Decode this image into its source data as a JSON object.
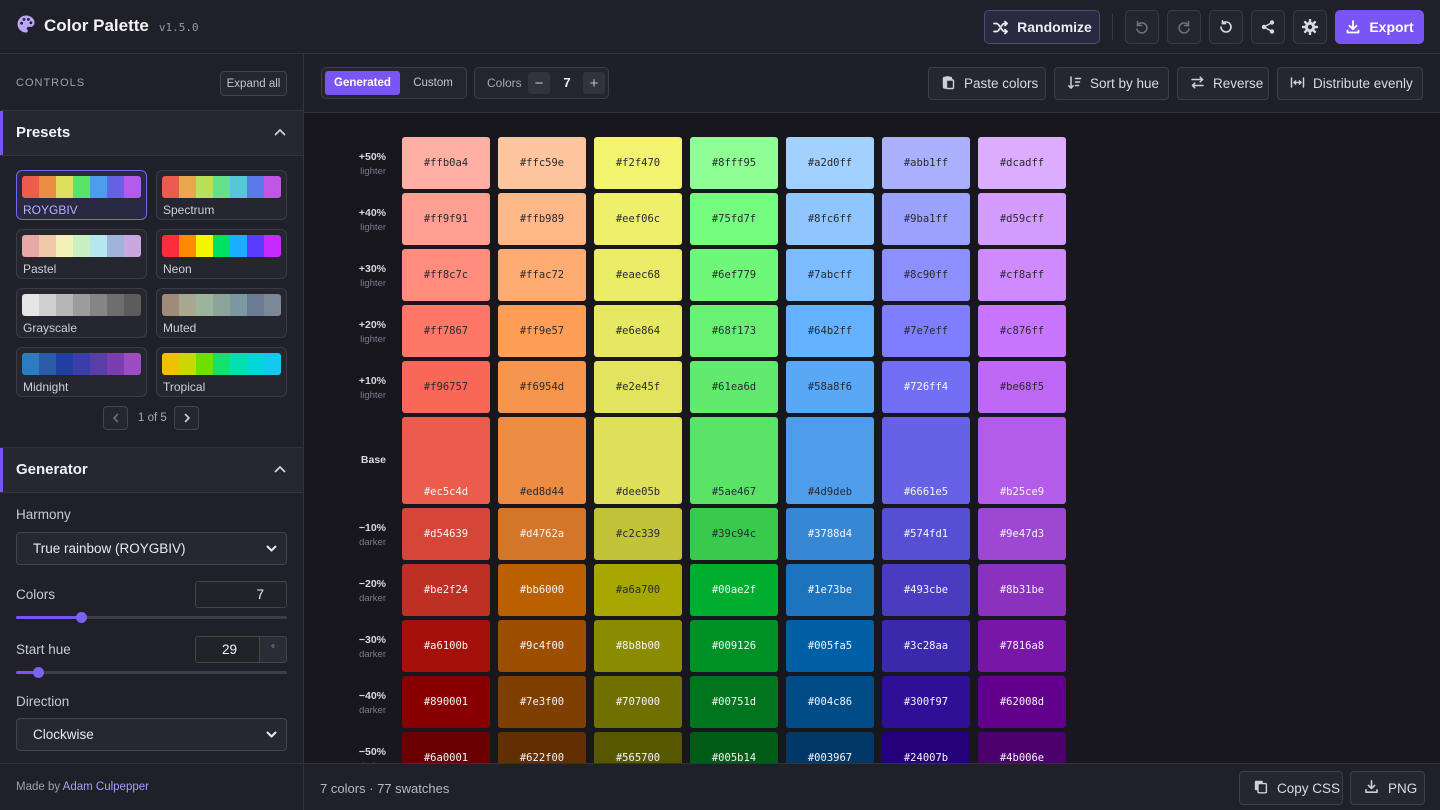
{
  "header": {
    "title": "Color Palette",
    "version": "v1.5.0",
    "randomize_label": "Randomize",
    "export_label": "Export",
    "colors": {
      "accent": "#7a55f5"
    }
  },
  "sidebar": {
    "controls_title": "CONTROLS",
    "expand_all_label": "Expand all",
    "presets": {
      "title": "Presets",
      "items": [
        {
          "name": "ROYGBIV",
          "active": true,
          "colors": [
            "#ec5c4d",
            "#ed8d44",
            "#dee05b",
            "#5ae467",
            "#4d9deb",
            "#6661e5",
            "#b25ce9"
          ]
        },
        {
          "name": "Spectrum",
          "active": false,
          "colors": [
            "#ec5c4d",
            "#eaa64a",
            "#b9e05b",
            "#66e08a",
            "#55c7d8",
            "#5b79e6",
            "#c056e6"
          ]
        },
        {
          "name": "Pastel",
          "active": false,
          "colors": [
            "#e8a8a8",
            "#f2c9a8",
            "#f4f2b8",
            "#c8f0c0",
            "#b6e6ee",
            "#9eb4da",
            "#c8a8de"
          ]
        },
        {
          "name": "Neon",
          "active": false,
          "colors": [
            "#ff2d3a",
            "#ff8a00",
            "#f5f500",
            "#00e060",
            "#1ab0ff",
            "#5b3cff",
            "#c62bff"
          ]
        },
        {
          "name": "Grayscale",
          "active": false,
          "colors": [
            "#e6e6e6",
            "#cfcfcf",
            "#b6b6b6",
            "#9c9c9c",
            "#858585",
            "#6e6e6e",
            "#5c5c5c"
          ]
        },
        {
          "name": "Muted",
          "active": false,
          "colors": [
            "#a08c76",
            "#a8a890",
            "#9cb49c",
            "#8ca49a",
            "#7c98a0",
            "#6a7c94",
            "#7a8898"
          ]
        },
        {
          "name": "Midnight",
          "active": false,
          "colors": [
            "#2c7cc0",
            "#2a5ca8",
            "#1f3fa0",
            "#3b3ea8",
            "#5a3ea8",
            "#7a3eb0",
            "#9c4ec0"
          ]
        },
        {
          "name": "Tropical",
          "active": false,
          "colors": [
            "#f2c000",
            "#c8d800",
            "#6ee000",
            "#14e070",
            "#00e0b0",
            "#00d8d8",
            "#14c8f0"
          ]
        }
      ],
      "page_text": "1 of 5"
    },
    "generator": {
      "title": "Generator",
      "harmony_label": "Harmony",
      "harmony_value": "True rainbow (ROYGBIV)",
      "colors_label": "Colors",
      "colors_value": "7",
      "colors_slider_fraction": 0.24,
      "start_hue_label": "Start hue",
      "start_hue_value": "29",
      "start_hue_unit": "°",
      "start_hue_slider_fraction": 0.08,
      "direction_label": "Direction",
      "direction_value": "Clockwise"
    },
    "footer": {
      "made_by": "Made by",
      "author": "Adam Culpepper"
    }
  },
  "toolbar": {
    "tab_generated": "Generated",
    "tab_custom": "Custom",
    "colors_label": "Colors",
    "colors_value": "7",
    "minus": "−",
    "plus": "+",
    "paste_label": "Paste colors",
    "sort_label": "Sort by hue",
    "reverse_label": "Reverse",
    "distribute_label": "Distribute evenly"
  },
  "palette": {
    "rows": [
      {
        "label": "+50%",
        "sub": "lighter",
        "kind": "tint",
        "swatches": [
          "#ffb0a4",
          "#ffc59e",
          "#f2f470",
          "#8fff95",
          "#a2d0ff",
          "#abb1ff",
          "#dcadff"
        ]
      },
      {
        "label": "+40%",
        "sub": "lighter",
        "kind": "tint",
        "swatches": [
          "#ff9f91",
          "#ffb989",
          "#eef06c",
          "#75fd7f",
          "#8fc6ff",
          "#9ba1ff",
          "#d59cff"
        ]
      },
      {
        "label": "+30%",
        "sub": "lighter",
        "kind": "tint",
        "swatches": [
          "#ff8c7c",
          "#ffac72",
          "#eaec68",
          "#6ef779",
          "#7abcff",
          "#8c90ff",
          "#cf8aff"
        ]
      },
      {
        "label": "+20%",
        "sub": "lighter",
        "kind": "tint",
        "swatches": [
          "#ff7867",
          "#ff9e57",
          "#e6e864",
          "#68f173",
          "#64b2ff",
          "#7e7eff",
          "#c876ff"
        ]
      },
      {
        "label": "+10%",
        "sub": "lighter",
        "kind": "tint",
        "swatches": [
          "#f96757",
          "#f6954d",
          "#e2e45f",
          "#61ea6d",
          "#58a8f6",
          "#726ff4",
          "#be68f5"
        ]
      },
      {
        "label": "Base",
        "sub": "",
        "kind": "base",
        "swatches": [
          "#ec5c4d",
          "#ed8d44",
          "#dee05b",
          "#5ae467",
          "#4d9deb",
          "#6661e5",
          "#b25ce9"
        ]
      },
      {
        "label": "−10%",
        "sub": "darker",
        "kind": "shade",
        "swatches": [
          "#d54639",
          "#d4762a",
          "#c2c339",
          "#39c94c",
          "#3788d4",
          "#574fd1",
          "#9e47d3"
        ]
      },
      {
        "label": "−20%",
        "sub": "darker",
        "kind": "shade",
        "swatches": [
          "#be2f24",
          "#bb6000",
          "#a6a700",
          "#00ae2f",
          "#1e73be",
          "#493cbe",
          "#8b31be"
        ]
      },
      {
        "label": "−30%",
        "sub": "darker",
        "kind": "shade",
        "swatches": [
          "#a6100b",
          "#9c4f00",
          "#8b8b00",
          "#009126",
          "#005fa5",
          "#3c28aa",
          "#7816a8"
        ]
      },
      {
        "label": "−40%",
        "sub": "darker",
        "kind": "shade",
        "swatches": [
          "#890001",
          "#7e3f00",
          "#707000",
          "#00751d",
          "#004c86",
          "#300f97",
          "#62008d"
        ]
      },
      {
        "label": "−50%",
        "sub": "darker",
        "kind": "shade",
        "swatches": [
          "#6a0001",
          "#622f00",
          "#565700",
          "#005b14",
          "#003967",
          "#24007b",
          "#4b006e"
        ]
      }
    ]
  },
  "status": {
    "summary": "7 colors · 77 swatches",
    "copy_css_label": "Copy CSS",
    "png_label": "PNG"
  }
}
